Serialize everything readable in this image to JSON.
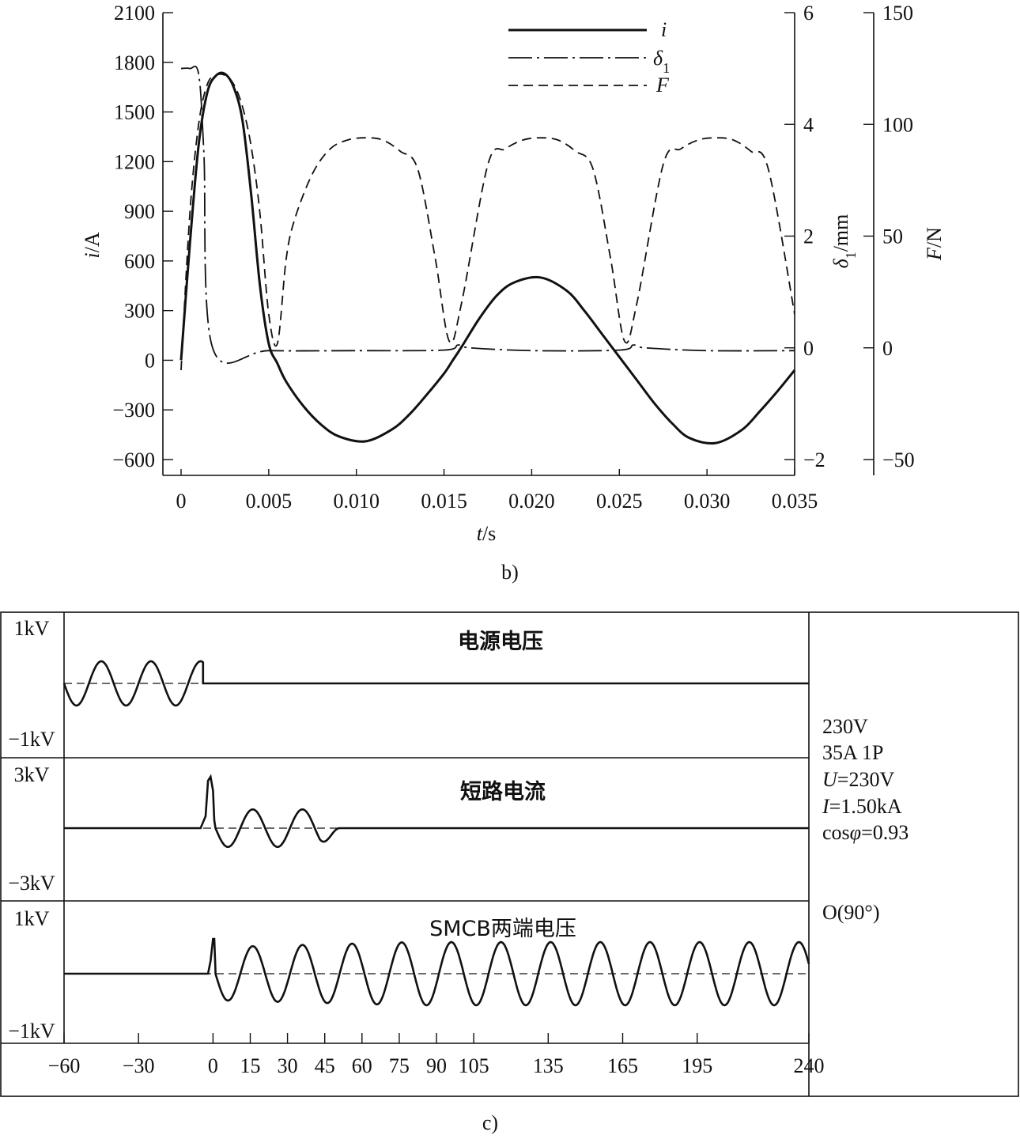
{
  "chart_data": [
    {
      "type": "line",
      "panel_label": "b)",
      "xlabel_var": "t",
      "xlabel_unit": "/s",
      "x_ticks": [
        "0",
        "0.005",
        "0.010",
        "0.015",
        "0.020",
        "0.025",
        "0.030",
        "0.035"
      ],
      "xlim": [
        0,
        0.035
      ],
      "left_axis": {
        "label_var": "i",
        "label_unit": "/A",
        "ylim": [
          -600,
          2100
        ],
        "ticks": [
          "−600",
          "−300",
          "0",
          "300",
          "600",
          "900",
          "1200",
          "1500",
          "1800",
          "2100"
        ]
      },
      "mid_axis": {
        "label_var": "δ",
        "label_sub": "1",
        "label_unit": "/mm",
        "ylim": [
          -2,
          6
        ],
        "ticks": [
          "−2",
          "0",
          "2",
          "4",
          "6"
        ]
      },
      "right_axis": {
        "label_var": "F",
        "label_unit": "/N",
        "ylim": [
          -50,
          150
        ],
        "ticks": [
          "−50",
          "0",
          "50",
          "100",
          "150"
        ]
      },
      "legend": [
        {
          "name": "i",
          "style": "solid"
        },
        {
          "name": "δ",
          "sub": "1",
          "style": "dash-dot"
        },
        {
          "name": "F",
          "style": "dashed"
        }
      ],
      "series": [
        {
          "name": "i",
          "axis": "left",
          "x": [
            0,
            0.0005,
            0.001,
            0.0015,
            0.002,
            0.0025,
            0.003,
            0.0035,
            0.004,
            0.0045,
            0.005,
            0.0055,
            0.006,
            0.007,
            0.008,
            0.009,
            0.0105,
            0.012,
            0.013,
            0.014,
            0.015,
            0.0155,
            0.016,
            0.017,
            0.018,
            0.019,
            0.0205,
            0.022,
            0.023,
            0.024,
            0.025,
            0.026,
            0.027,
            0.028,
            0.029,
            0.0305,
            0.032,
            0.033,
            0.034,
            0.035
          ],
          "y": [
            0,
            700,
            1300,
            1620,
            1720,
            1730,
            1650,
            1450,
            1000,
            450,
            100,
            -20,
            -130,
            -280,
            -390,
            -460,
            -490,
            -420,
            -330,
            -210,
            -80,
            0,
            80,
            250,
            390,
            470,
            500,
            420,
            300,
            160,
            20,
            -120,
            -260,
            -380,
            -470,
            -500,
            -420,
            -310,
            -190,
            -60
          ]
        },
        {
          "name": "δ1",
          "axis": "mid",
          "x": [
            0,
            0.0005,
            0.001,
            0.0013,
            0.0018,
            0.005,
            0.01,
            0.015,
            0.0158,
            0.0165,
            0.02,
            0.025,
            0.0258,
            0.0265,
            0.03,
            0.035
          ],
          "y": [
            5.0,
            5.0,
            4.9,
            3.5,
            0.0,
            -0.05,
            -0.05,
            -0.04,
            0.05,
            0.0,
            -0.05,
            -0.04,
            0.05,
            0.0,
            -0.05,
            -0.05
          ]
        },
        {
          "name": "F",
          "axis": "right",
          "x": [
            0,
            0.0005,
            0.001,
            0.0015,
            0.002,
            0.0025,
            0.003,
            0.0035,
            0.004,
            0.0045,
            0.005,
            0.0055,
            0.006,
            0.0065,
            0.0075,
            0.0085,
            0.0095,
            0.0105,
            0.0115,
            0.0125,
            0.0135,
            0.0145,
            0.0153,
            0.016,
            0.0175,
            0.0185,
            0.0195,
            0.0205,
            0.0215,
            0.0225,
            0.0235,
            0.0245,
            0.0253,
            0.026,
            0.0275,
            0.0285,
            0.0295,
            0.0305,
            0.0315,
            0.0325,
            0.0335,
            0.035
          ],
          "y": [
            -10,
            60,
            100,
            118,
            122,
            122,
            118,
            108,
            90,
            60,
            15,
            2,
            40,
            58,
            78,
            89,
            93,
            94,
            93,
            88,
            80,
            40,
            3,
            20,
            82,
            89,
            93,
            94,
            93,
            88,
            80,
            40,
            3,
            20,
            82,
            89,
            93,
            94,
            93,
            88,
            80,
            15
          ]
        }
      ]
    },
    {
      "type": "line",
      "panel_label": "c)",
      "x_ticks": [
        "−60",
        "−30",
        "0",
        "15",
        "30",
        "45",
        "60",
        "75",
        "90",
        "105",
        "135",
        "165",
        "195",
        "240"
      ],
      "xlim": [
        -60,
        240
      ],
      "info_lines": [
        {
          "plain": "230V"
        },
        {
          "plain": "35A 1P"
        },
        {
          "var": "U",
          "rest": "=230V"
        },
        {
          "var": "I",
          "rest": "=1.50kA"
        },
        {
          "pre": "cos",
          "var": "φ",
          "rest": "=0.93"
        }
      ],
      "angle_label": "O(90°)",
      "panels": [
        {
          "title": "电源电压",
          "y_top": "1kV",
          "y_bottom": "−1kV",
          "ylim": [
            -1,
            1
          ],
          "segments": [
            {
              "kind": "sine",
              "from": -60,
              "to": -4,
              "amp": 0.4,
              "period": 20,
              "phase": 180
            },
            {
              "kind": "line",
              "points": [
                [
                  -4,
                  0.37
                ],
                [
                  -4,
                  0.0
                ],
                [
                  240,
                  0.0
                ]
              ]
            }
          ]
        },
        {
          "title": "短路电流",
          "y_top": "3kV",
          "y_bottom": "−3kV",
          "ylim": [
            -3,
            3
          ],
          "segments": [
            {
              "kind": "line",
              "points": [
                [
                  -60,
                  0
                ],
                [
                  -5,
                  0
                ],
                [
                  -3,
                  0.6
                ],
                [
                  -2,
                  2.4
                ],
                [
                  -1,
                  2.6
                ],
                [
                  0,
                  1.9
                ],
                [
                  0.5,
                  0.4
                ],
                [
                  1,
                  0
                ]
              ]
            },
            {
              "kind": "sine",
              "from": 1,
              "to": 51,
              "amp": 0.95,
              "period": 20,
              "phase": 180,
              "decay_after": 43
            },
            {
              "kind": "line",
              "points": [
                [
                  51,
                  0
                ],
                [
                  240,
                  0
                ]
              ]
            }
          ]
        },
        {
          "title": "SMCB两端电压",
          "y_top": "1kV",
          "y_bottom": "−1kV",
          "ylim": [
            -1,
            1
          ],
          "segments": [
            {
              "kind": "line",
              "points": [
                [
                  -60,
                  0
                ],
                [
                  -2,
                  0
                ],
                [
                  -1,
                  0.2
                ],
                [
                  0,
                  0.55
                ],
                [
                  0.5,
                  0.55
                ],
                [
                  1,
                  0.05
                ]
              ]
            },
            {
              "kind": "sine",
              "from": 1,
              "to": 240,
              "amp": 0.42,
              "period": 20,
              "phase": 180,
              "grow_to": 0.5
            }
          ]
        }
      ]
    }
  ]
}
